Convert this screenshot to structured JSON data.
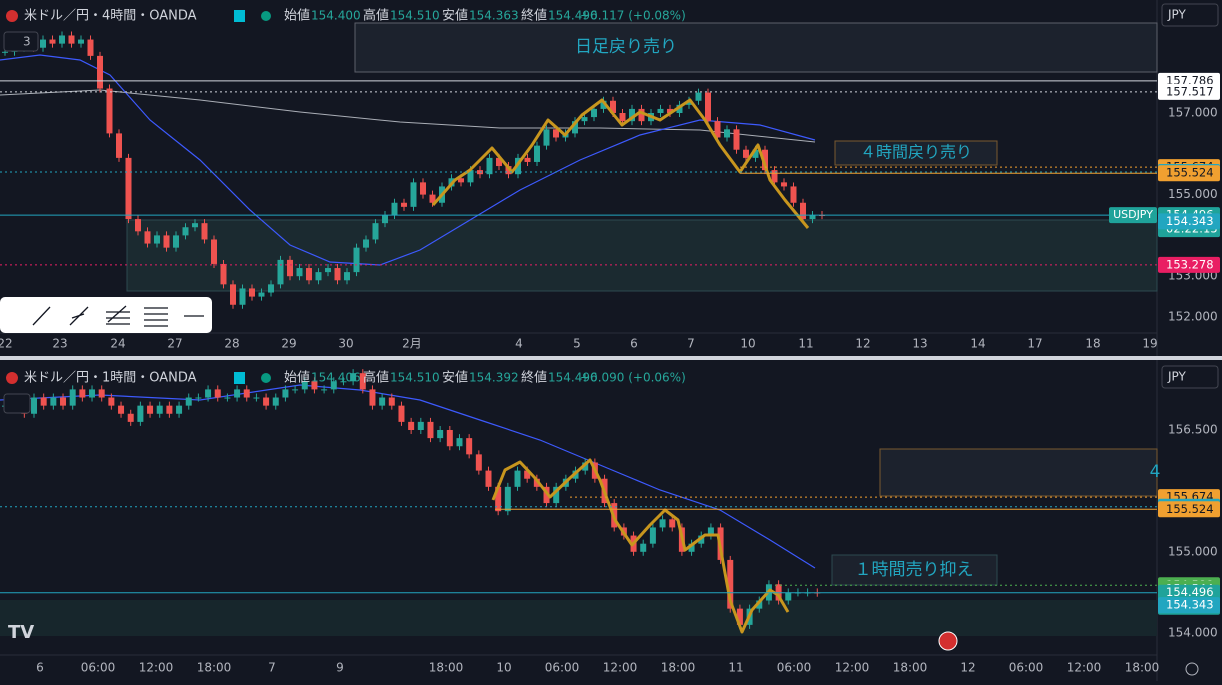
{
  "panels": [
    {
      "header": {
        "symbol": "米ドル／円・4時間・OANDA",
        "open_label": "始値",
        "open": "154.400",
        "high_label": "高値",
        "high": "154.510",
        "low_label": "安値",
        "low": "154.363",
        "close_label": "終値",
        "close": "154.496",
        "change": "+0.117 (+0.08%)"
      },
      "indicator_count": "3",
      "currency": "JPY",
      "annotations": [
        "日足戻り売り",
        "４時間戻り売り"
      ],
      "symbol_tag": "USDJPY",
      "countdown": "02:22:15",
      "price_ticks": [
        {
          "value": 157,
          "label": "157.000"
        },
        {
          "value": 155,
          "label": "155.000"
        },
        {
          "value": 153,
          "label": "153.000"
        },
        {
          "value": 152,
          "label": "152.000"
        }
      ],
      "price_levels": [
        157.786,
        157.517,
        155.674,
        155.555,
        155.524,
        154.496,
        154.343,
        153.278
      ],
      "time_labels": [
        "22",
        "23",
        "24",
        "27",
        "28",
        "29",
        "30",
        "2月",
        "4",
        "5",
        "6",
        "7",
        "10",
        "11",
        "12",
        "13",
        "14",
        "17",
        "18",
        "19"
      ],
      "closes": [
        158.5,
        158.6,
        158.7,
        158.6,
        158.8,
        158.7,
        158.9,
        158.7,
        158.8,
        158.4,
        157.6,
        156.5,
        155.9,
        154.4,
        154.1,
        153.8,
        154.0,
        153.7,
        154.0,
        154.2,
        154.3,
        153.9,
        153.3,
        152.8,
        152.3,
        152.7,
        152.5,
        152.6,
        152.8,
        153.4,
        153.0,
        153.2,
        152.9,
        153.1,
        153.2,
        152.9,
        153.1,
        153.7,
        153.9,
        154.3,
        154.5,
        154.8,
        154.7,
        155.3,
        155.0,
        154.8,
        155.2,
        155.4,
        155.3,
        155.6,
        155.5,
        155.9,
        155.7,
        155.5,
        155.9,
        155.8,
        156.2,
        156.6,
        156.4,
        156.5,
        156.8,
        156.9,
        157.1,
        157.3,
        157.0,
        156.8,
        157.1,
        156.8,
        157.0,
        157.1,
        157.0,
        157.2,
        157.3,
        157.5,
        156.8,
        156.4,
        156.6,
        156.1,
        155.9,
        156.1,
        155.6,
        155.3,
        155.2,
        154.8,
        154.4,
        154.5,
        154.496
      ]
    },
    {
      "header": {
        "symbol": "米ドル／円・1時間・OANDA",
        "open_label": "始値",
        "open": "154.406",
        "high_label": "高値",
        "high": "154.510",
        "low_label": "安値",
        "low": "154.392",
        "close_label": "終値",
        "close": "154.496",
        "change": "+0.090 (+0.06%)"
      },
      "currency": "JPY",
      "annotations": [
        "１時間売り抑え",
        "4"
      ],
      "countdown": "22:15",
      "price_ticks": [
        {
          "value": 156.5,
          "label": "156.500"
        },
        {
          "value": 155,
          "label": "155.000"
        },
        {
          "value": 154,
          "label": "154.000"
        }
      ],
      "price_levels": [
        155.674,
        155.555,
        155.524,
        154.588,
        154.544,
        154.496,
        154.343
      ],
      "time_labels": [
        "6",
        "06:00",
        "12:00",
        "18:00",
        "7",
        "9",
        "18:00",
        "10",
        "06:00",
        "12:00",
        "18:00",
        "11",
        "06:00",
        "12:00",
        "18:00",
        "12",
        "06:00",
        "12:00",
        "18:00"
      ],
      "closes": [
        156.8,
        156.9,
        156.7,
        156.9,
        156.8,
        156.9,
        156.8,
        157.0,
        156.9,
        157.0,
        156.9,
        156.8,
        156.7,
        156.6,
        156.8,
        156.7,
        156.8,
        156.7,
        156.8,
        156.9,
        156.9,
        157.0,
        156.9,
        156.9,
        157.0,
        156.9,
        156.9,
        156.8,
        156.9,
        157.0,
        157.0,
        157.1,
        157.0,
        157.0,
        157.1,
        157.1,
        157.2,
        157.0,
        156.8,
        156.9,
        156.8,
        156.6,
        156.5,
        156.6,
        156.4,
        156.5,
        156.3,
        156.4,
        156.2,
        156.0,
        155.8,
        155.5,
        155.8,
        156.0,
        155.9,
        155.8,
        155.6,
        155.8,
        155.9,
        156.0,
        156.1,
        155.9,
        155.6,
        155.3,
        155.2,
        155.0,
        155.1,
        155.3,
        155.4,
        155.3,
        155.0,
        155.1,
        155.2,
        155.3,
        154.9,
        154.3,
        154.1,
        154.3,
        154.4,
        154.6,
        154.4,
        154.5,
        154.5,
        154.5,
        154.496
      ]
    }
  ]
}
